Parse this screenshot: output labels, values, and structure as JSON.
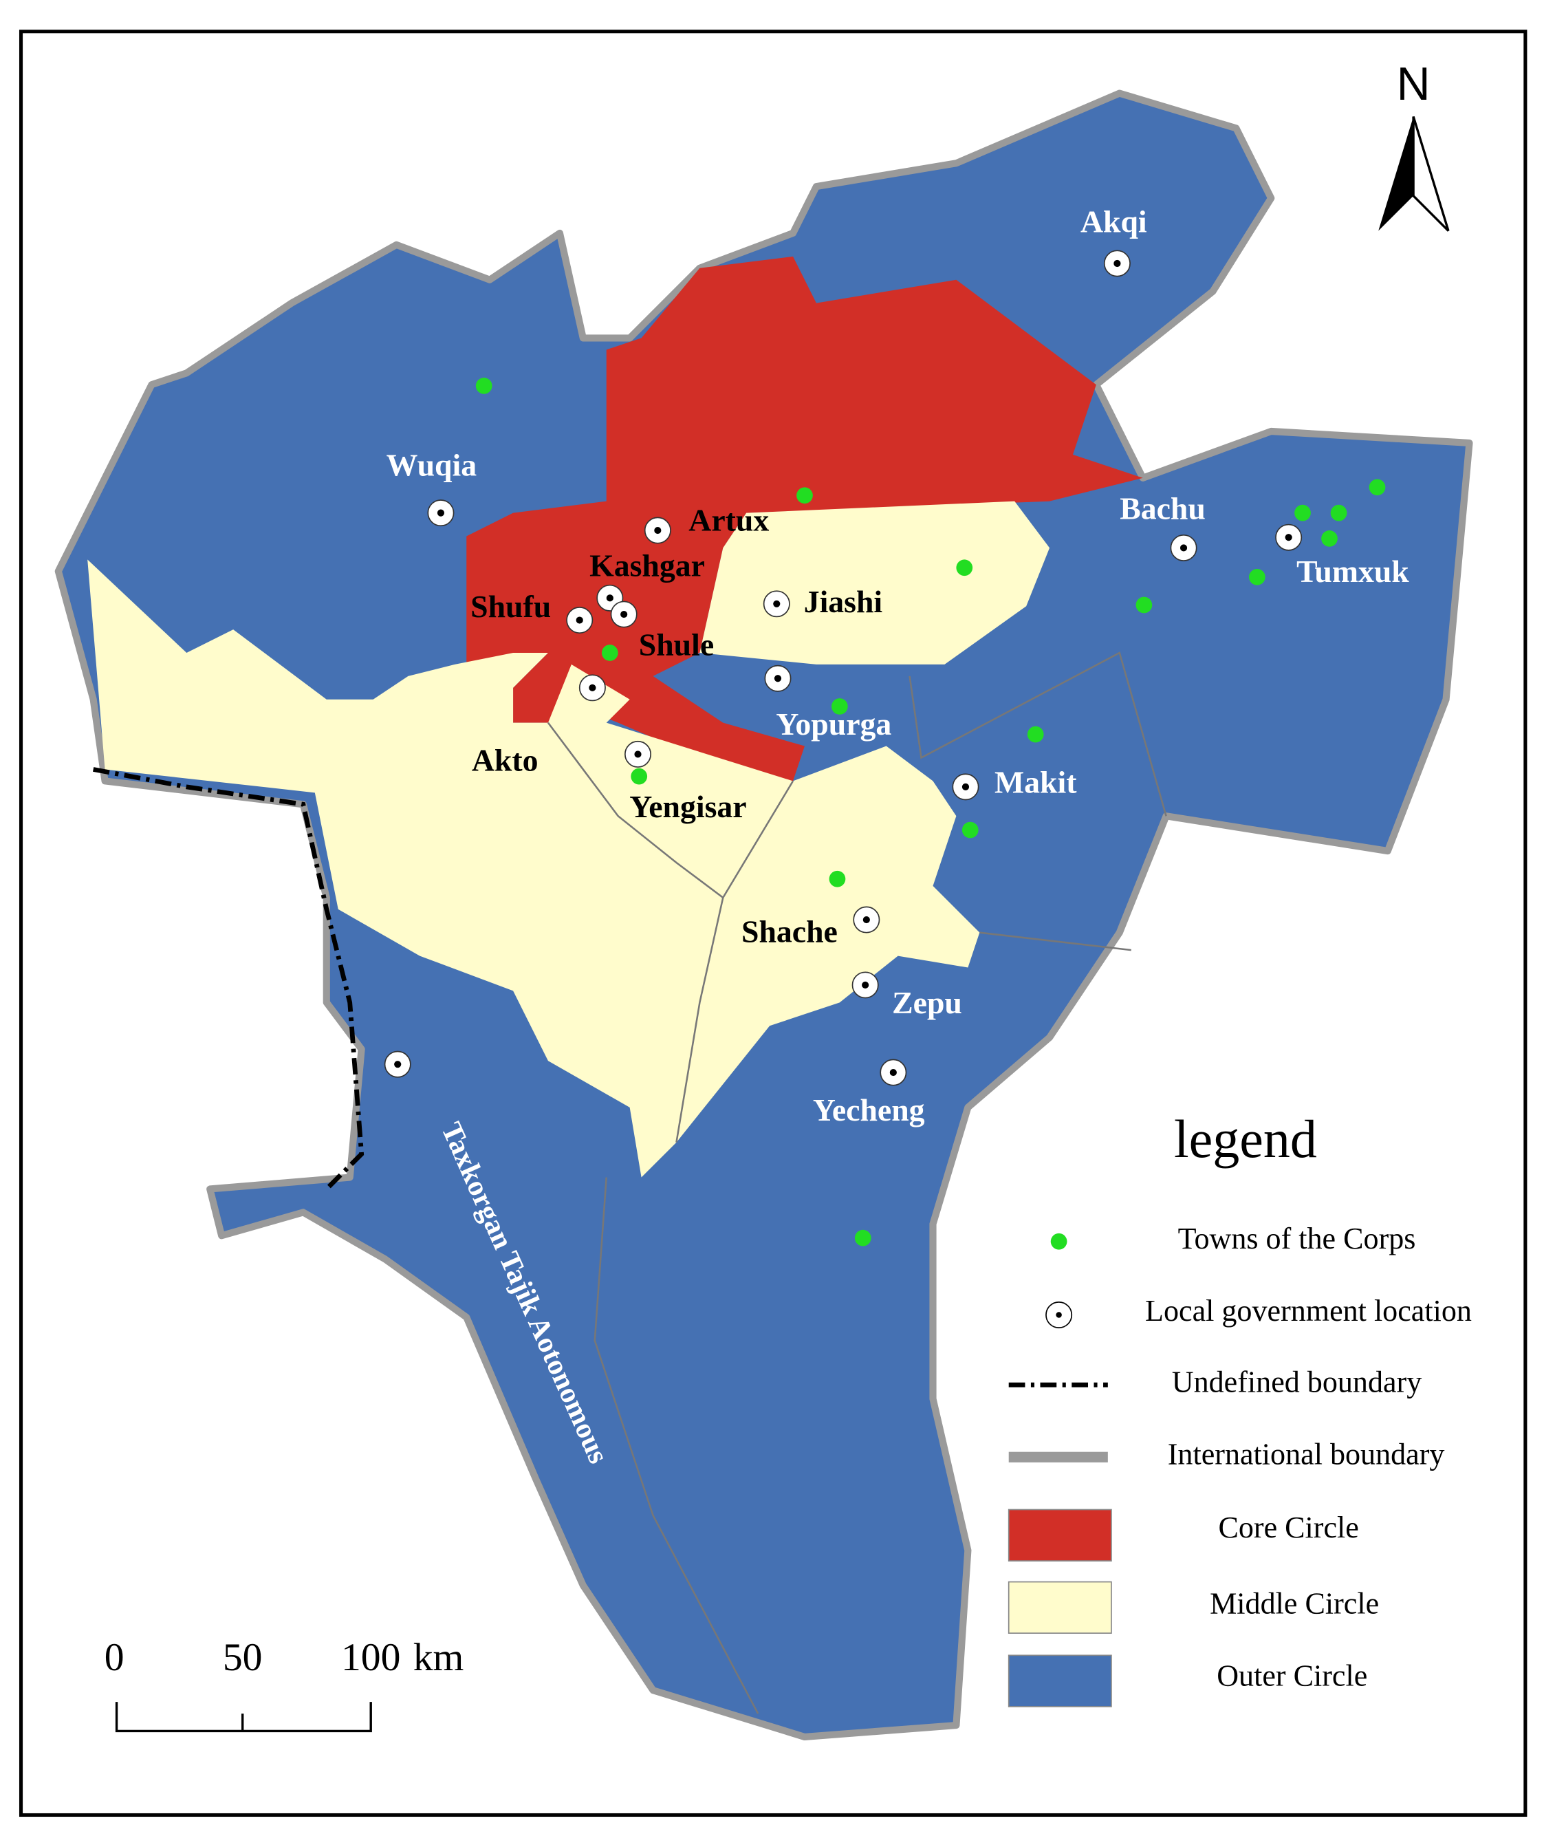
{
  "north": "N",
  "places": [
    "Akqi",
    "Wuqia",
    "Artux",
    "Kashgar",
    "Shufu",
    "Jiashi",
    "Shule",
    "Bachu",
    "Tumxuk",
    "Yopurga",
    "Akto",
    "Makit",
    "Yengisar",
    "Shache",
    "Zepu",
    "Yecheng",
    "Taxkorgan Tajik Aotonomous"
  ],
  "legend": {
    "title": "legend",
    "items": [
      "Towns of the Corps",
      "Local government location",
      "Undefined boundary",
      "International boundary",
      "Core Circle",
      "Middle Circle",
      "Outer Circle"
    ]
  },
  "scale": {
    "labels": [
      0,
      50,
      100
    ],
    "unit": "km"
  }
}
